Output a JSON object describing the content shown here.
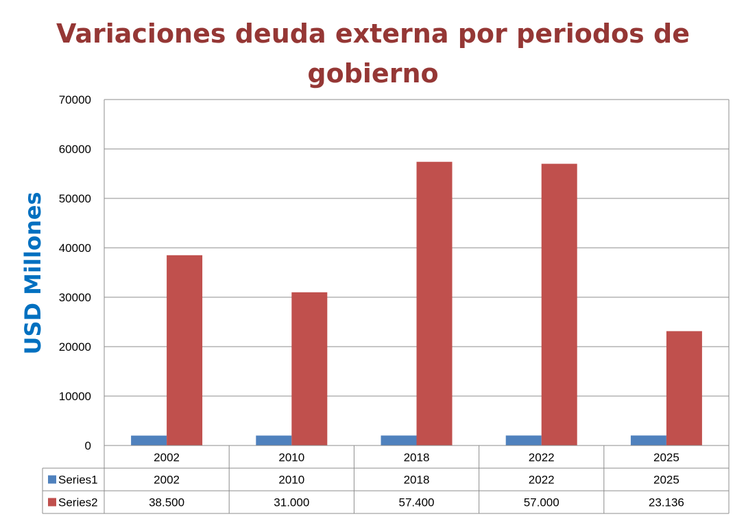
{
  "chart_data": {
    "type": "bar",
    "title_line1": "Variaciones deuda externa por periodos de",
    "title_line2": "gobierno",
    "xlabel": "",
    "ylabel": "USD Millones",
    "ylim": [
      0,
      70000
    ],
    "yticks": [
      "70000",
      "60000",
      "50000",
      "40000",
      "30000",
      "20000",
      "10000",
      "0"
    ],
    "categories": [
      "2002",
      "2010",
      "2018",
      "2022",
      "2025"
    ],
    "series": [
      {
        "name": "Series1",
        "values": [
          2002,
          2010,
          2018,
          2022,
          2025
        ],
        "labels": [
          "2002",
          "2010",
          "2018",
          "2022",
          "2025"
        ],
        "color": "#4F81BD"
      },
      {
        "name": "Series2",
        "values": [
          38500,
          31000,
          57400,
          57000,
          23136
        ],
        "labels": [
          "38.500",
          "31.000",
          "57.400",
          "57.000",
          "23.136"
        ],
        "color": "#C0504D"
      }
    ],
    "grid": true,
    "legend": "data-table"
  }
}
